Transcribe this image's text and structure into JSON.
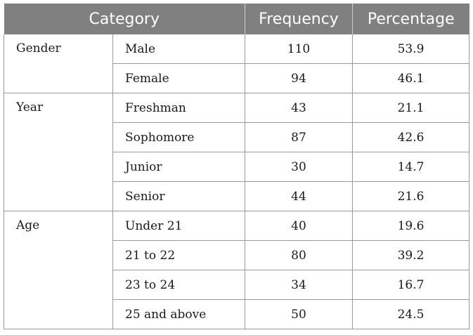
{
  "header": {
    "category": "Category",
    "frequency": "Frequency",
    "percentage": "Percentage"
  },
  "groups": [
    {
      "name": "Gender",
      "rows": [
        {
          "label": "Male",
          "frequency": "110",
          "percentage": "53.9"
        },
        {
          "label": "Female",
          "frequency": "94",
          "percentage": "46.1"
        }
      ]
    },
    {
      "name": "Year",
      "rows": [
        {
          "label": "Freshman",
          "frequency": "43",
          "percentage": "21.1"
        },
        {
          "label": "Sophomore",
          "frequency": "87",
          "percentage": "42.6"
        },
        {
          "label": "Junior",
          "frequency": "30",
          "percentage": "14.7"
        },
        {
          "label": "Senior",
          "frequency": "44",
          "percentage": "21.6"
        }
      ]
    },
    {
      "name": "Age",
      "rows": [
        {
          "label": "Under 21",
          "frequency": "40",
          "percentage": "19.6"
        },
        {
          "label": "21 to 22",
          "frequency": "80",
          "percentage": "39.2"
        },
        {
          "label": "23 to 24",
          "frequency": "34",
          "percentage": "16.7"
        },
        {
          "label": "25 and above",
          "frequency": "50",
          "percentage": "24.5"
        }
      ]
    }
  ]
}
